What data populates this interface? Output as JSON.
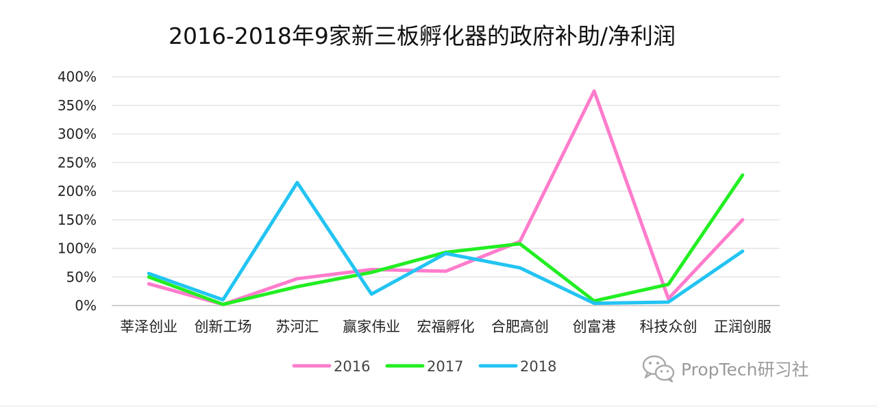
{
  "chart_data": {
    "type": "line",
    "title": "2016-2018年9家新三板孵化器的政府补助/净利润",
    "xlabel": "",
    "ylabel": "",
    "ylim": [
      0,
      400
    ],
    "yticks": [
      0,
      50,
      100,
      150,
      200,
      250,
      300,
      350,
      400
    ],
    "ytick_labels": [
      "0%",
      "50%",
      "100%",
      "150%",
      "200%",
      "250%",
      "300%",
      "350%",
      "400%"
    ],
    "categories": [
      "莘泽创业",
      "创新工场",
      "苏河汇",
      "赢家伟业",
      "宏福孵化",
      "合肥高创",
      "创富港",
      "科技众创",
      "正润创服"
    ],
    "grid": true,
    "legend_position": "bottom",
    "series": [
      {
        "name": "2016",
        "color": "#ff7ccc",
        "values": [
          38,
          2,
          47,
          63,
          60,
          112,
          375,
          12,
          150
        ]
      },
      {
        "name": "2017",
        "color": "#22ee22",
        "values": [
          50,
          2,
          33,
          58,
          93,
          108,
          8,
          37,
          228
        ]
      },
      {
        "name": "2018",
        "color": "#22c4f2",
        "values": [
          56,
          10,
          215,
          20,
          91,
          66,
          4,
          6,
          95
        ]
      }
    ]
  },
  "watermark": {
    "text": "PropTech研习社",
    "icon": "wechat-icon"
  }
}
